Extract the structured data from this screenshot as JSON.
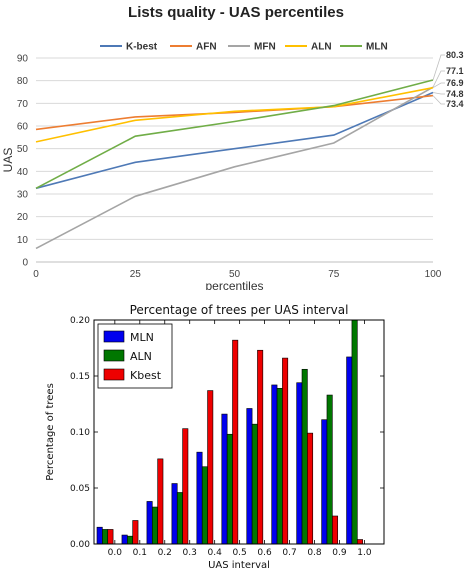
{
  "chart_data": [
    {
      "type": "line",
      "title": "Lists quality - UAS percentiles",
      "xlabel": "percentiles",
      "ylabel": "UAS",
      "x": [
        0,
        25,
        50,
        75,
        100
      ],
      "xticks": [
        "0",
        "25",
        "50",
        "75",
        "100"
      ],
      "yticks": [
        "0",
        "10",
        "20",
        "30",
        "40",
        "50",
        "60",
        "70",
        "80",
        "90"
      ],
      "ylim": [
        0,
        90
      ],
      "xlim": [
        0,
        100
      ],
      "grid": "horizontal",
      "legend": "top",
      "series": [
        {
          "name": "K-best",
          "color": "#4e79b6",
          "values": [
            32.5,
            44,
            50,
            56,
            74.8
          ]
        },
        {
          "name": "AFN",
          "color": "#ed7d31",
          "values": [
            58.5,
            64,
            66,
            68.5,
            73.4
          ]
        },
        {
          "name": "MFN",
          "color": "#a5a5a5",
          "values": [
            6,
            29,
            42,
            52.5,
            77.1
          ]
        },
        {
          "name": "ALN",
          "color": "#ffc000",
          "values": [
            53,
            62.5,
            66.5,
            68.5,
            76.9
          ]
        },
        {
          "name": "MLN",
          "color": "#70ad47",
          "values": [
            32.5,
            55.5,
            62,
            69,
            80.3
          ]
        }
      ],
      "end_labels": [
        "80.3",
        "77.1",
        "76.9",
        "74.8",
        "73.4"
      ]
    },
    {
      "type": "bar",
      "title": "Percentage of trees per UAS interval",
      "xlabel": "UAS interval",
      "ylabel": "Percentage of trees",
      "categories": [
        "0.0",
        "0.1",
        "0.2",
        "0.3",
        "0.4",
        "0.5",
        "0.6",
        "0.7",
        "0.8",
        "0.9",
        "1.0"
      ],
      "yticks": [
        "0.00",
        "0.05",
        "0.10",
        "0.15",
        "0.20"
      ],
      "ylim": [
        0,
        0.2
      ],
      "legend": "top-left",
      "series": [
        {
          "name": "MLN",
          "color": "#0000ee",
          "values": [
            0.015,
            0.008,
            0.038,
            0.054,
            0.082,
            0.116,
            0.121,
            0.142,
            0.144,
            0.111,
            0.167
          ]
        },
        {
          "name": "ALN",
          "color": "#007700",
          "values": [
            0.013,
            0.007,
            0.033,
            0.046,
            0.069,
            0.098,
            0.107,
            0.139,
            0.156,
            0.133,
            0.2
          ]
        },
        {
          "name": "Kbest",
          "color": "#ee0000",
          "values": [
            0.013,
            0.021,
            0.076,
            0.103,
            0.137,
            0.182,
            0.173,
            0.166,
            0.099,
            0.025,
            0.004
          ]
        }
      ]
    }
  ]
}
